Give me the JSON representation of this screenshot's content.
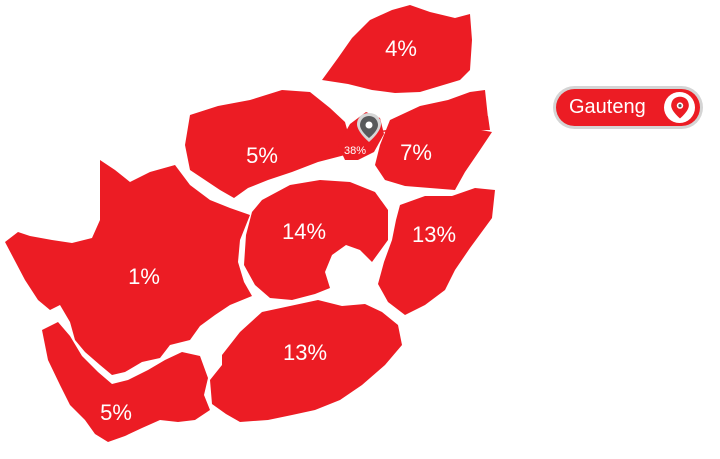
{
  "map": {
    "provinces": [
      {
        "id": "limpopo",
        "label": "4%"
      },
      {
        "id": "north-west",
        "label": "5%"
      },
      {
        "id": "gauteng",
        "label": "38%"
      },
      {
        "id": "mpumalanga",
        "label": "7%"
      },
      {
        "id": "free-state",
        "label": "14%"
      },
      {
        "id": "kwazulu-natal",
        "label": "13%"
      },
      {
        "id": "northern-cape",
        "label": "1%"
      },
      {
        "id": "eastern-cape",
        "label": "13%"
      },
      {
        "id": "western-cape",
        "label": "5%"
      }
    ],
    "fill_color": "#ec1c24",
    "marker_icon": "map-pin-icon"
  },
  "legend": {
    "label": "Gauteng",
    "icon": "map-pin-icon"
  }
}
